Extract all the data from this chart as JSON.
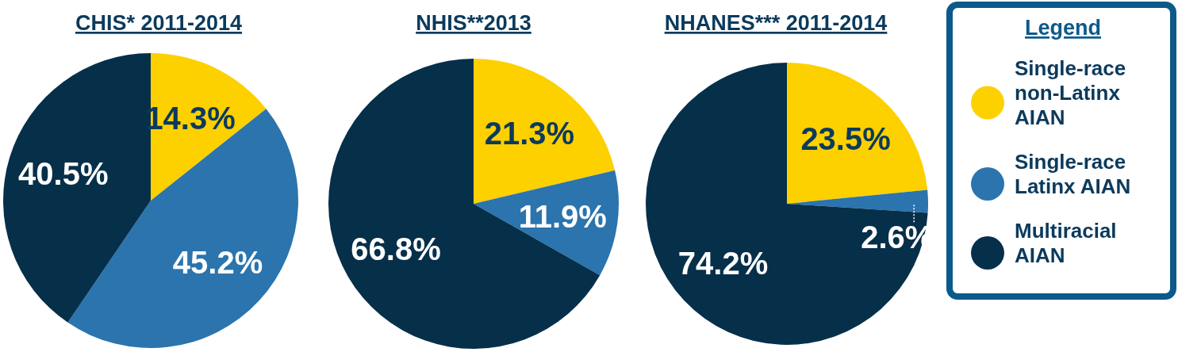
{
  "chart_data": [
    {
      "type": "pie",
      "title": "CHIS* 2011-2014",
      "values": [
        14.3,
        45.2,
        40.5
      ],
      "colors": [
        "#fdd000",
        "#2b74ad",
        "#062f4a"
      ],
      "value_labels": [
        "14.3%",
        "45.2%",
        "40.5%"
      ]
    },
    {
      "type": "pie",
      "title": "NHIS**2013",
      "values": [
        21.3,
        11.9,
        66.8
      ],
      "colors": [
        "#fdd000",
        "#2b74ad",
        "#062f4a"
      ],
      "value_labels": [
        "21.3%",
        "11.9%",
        "66.8%"
      ]
    },
    {
      "type": "pie",
      "title": "NHANES*** 2011-2014",
      "categories": [
        "Single-race non-Latinx AIAN",
        "Single-race Latinx AIAN",
        "Multiracial AIAN"
      ],
      "values": [
        23.5,
        2.6,
        74.2
      ],
      "colors": [
        "#fdd000",
        "#2b74ad",
        "#062f4a"
      ],
      "value_labels": [
        "23.5%",
        "2.6%",
        "74.2%"
      ],
      "legend": "right",
      "legend_title": "Legend"
    }
  ]
}
